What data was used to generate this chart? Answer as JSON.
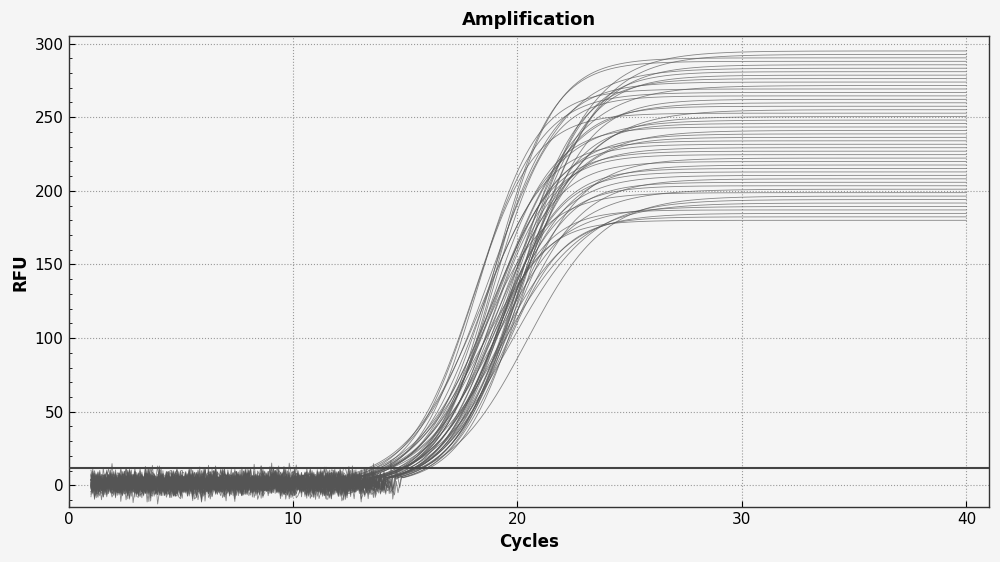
{
  "title": "Amplification",
  "xlabel": "Cycles",
  "ylabel": "RFU",
  "xlim": [
    0,
    41
  ],
  "ylim": [
    -15,
    305
  ],
  "xticks": [
    0,
    10,
    20,
    30,
    40
  ],
  "yticks": [
    0,
    50,
    100,
    150,
    200,
    250,
    300
  ],
  "threshold_y": 12,
  "threshold_color": "#444444",
  "curve_color": "#555555",
  "background_color": "#f5f5f5",
  "n_curves": 50,
  "title_fontsize": 13,
  "label_fontsize": 12,
  "tick_fontsize": 11,
  "grid_color": "#999999",
  "grid_linestyle": ":",
  "grid_linewidth": 0.8,
  "plateau_min": 180,
  "plateau_max": 295,
  "mid_min": 18.0,
  "mid_max": 20.5,
  "steep_min": 0.55,
  "steep_max": 0.8,
  "baseline_noise_std": 4.0,
  "baseline_mean": 1.5
}
